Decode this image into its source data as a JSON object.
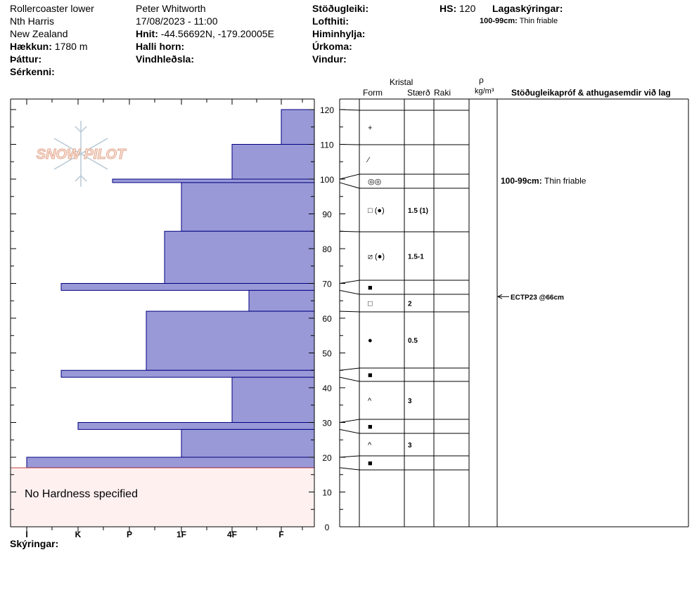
{
  "header": {
    "col1": [
      "Rollercoaster lower",
      "Nth Harris",
      "New Zealand"
    ],
    "elevation_label": "Hækkun:",
    "elevation_value": "1780 m",
    "aspect_label": "Þáttur:",
    "features_label": "Sérkenni:",
    "observer": "Peter Whitworth",
    "datetime": "17/08/2023 - 11:00",
    "coords_label": "Hnit:",
    "coords_value": "-44.56692N, -179.20005E",
    "slope_label": "Halli horn:",
    "wind_loading_label": "Vindhleðsla:",
    "stability_label": "Stöðugleiki:",
    "air_temp_label": "Lofthiti:",
    "sky_label": "Himinhylja:",
    "precip_label": "Úrkoma:",
    "wind_label": "Vindur:",
    "hs_label": "HS:",
    "hs_value": "120",
    "layer_notes_label": "Lagaskýringar:",
    "layer_notes_value": "100-99cm:  Thin friable"
  },
  "columns": {
    "crystal": "Kristal",
    "form": "Form",
    "size": "Stærð",
    "moisture": "Raki",
    "rho": "ρ",
    "density_unit": "kg/m³",
    "tests": "Stöðugleikapróf & athugasemdir við lag"
  },
  "legend_label": "Skýringar:",
  "logo_text": "SNOW PILOT",
  "no_hardness_text": "No Hardness specified",
  "chart_data": {
    "type": "bar",
    "orientation": "horizontal",
    "y_axis": {
      "label": "",
      "range": [
        0,
        120
      ],
      "ticks": [
        0,
        10,
        20,
        30,
        40,
        50,
        60,
        70,
        80,
        90,
        100,
        110,
        120
      ]
    },
    "x_axis": {
      "label": "",
      "categories": [
        "I",
        "K",
        "P",
        "1F",
        "4F",
        "F"
      ]
    },
    "no_hardness_range": [
      0,
      17
    ],
    "layers": [
      {
        "top": 120,
        "bottom": 110,
        "hardness": "F"
      },
      {
        "top": 110,
        "bottom": 100,
        "hardness": "4F"
      },
      {
        "top": 100,
        "bottom": 99,
        "hardness": "P+"
      },
      {
        "top": 99,
        "bottom": 85,
        "hardness": "1F"
      },
      {
        "top": 85,
        "bottom": 70,
        "hardness": "1F+"
      },
      {
        "top": 70,
        "bottom": 68,
        "hardness": "K+"
      },
      {
        "top": 68,
        "bottom": 62,
        "hardness": "4F-"
      },
      {
        "top": 62,
        "bottom": 45,
        "hardness": "P-"
      },
      {
        "top": 45,
        "bottom": 43,
        "hardness": "K+"
      },
      {
        "top": 43,
        "bottom": 30,
        "hardness": "4F"
      },
      {
        "top": 30,
        "bottom": 28,
        "hardness": "K"
      },
      {
        "top": 28,
        "bottom": 20,
        "hardness": "1F"
      },
      {
        "top": 20,
        "bottom": 17,
        "hardness": "I"
      }
    ],
    "profile_rows": [
      {
        "top": 120,
        "bottom": 110,
        "form": "+",
        "size": ""
      },
      {
        "top": 110,
        "bottom": 100,
        "form": "⁄",
        "size": ""
      },
      {
        "top": 100,
        "bottom": 99,
        "form": "◎◎",
        "size": ""
      },
      {
        "top": 99,
        "bottom": 85,
        "form": "□ (●)",
        "size": "1.5 (1)"
      },
      {
        "top": 85,
        "bottom": 70,
        "form": "⧄ (●)",
        "size": "1.5-1"
      },
      {
        "top": 70,
        "bottom": 68,
        "form": "■",
        "size": ""
      },
      {
        "top": 68,
        "bottom": 62,
        "form": "□",
        "size": "2"
      },
      {
        "top": 62,
        "bottom": 45,
        "form": "●",
        "size": "0.5"
      },
      {
        "top": 45,
        "bottom": 43,
        "form": "■",
        "size": ""
      },
      {
        "top": 43,
        "bottom": 30,
        "form": "^",
        "size": "3"
      },
      {
        "top": 30,
        "bottom": 28,
        "form": "■",
        "size": ""
      },
      {
        "top": 28,
        "bottom": 20,
        "form": "^",
        "size": "3"
      },
      {
        "top": 20,
        "bottom": 17,
        "form": "■",
        "size": ""
      }
    ],
    "annotations": [
      {
        "text_label": "100-99cm:",
        "text": "Thin friable",
        "at": 99.5
      },
      {
        "text": "ECTP23 @66cm",
        "at": 66
      }
    ],
    "colors": {
      "bar_fill": "#9999d8",
      "bar_stroke": "#000080",
      "no_hardness_fill": "#fff0f0",
      "no_hardness_stroke": "#c04040"
    }
  }
}
